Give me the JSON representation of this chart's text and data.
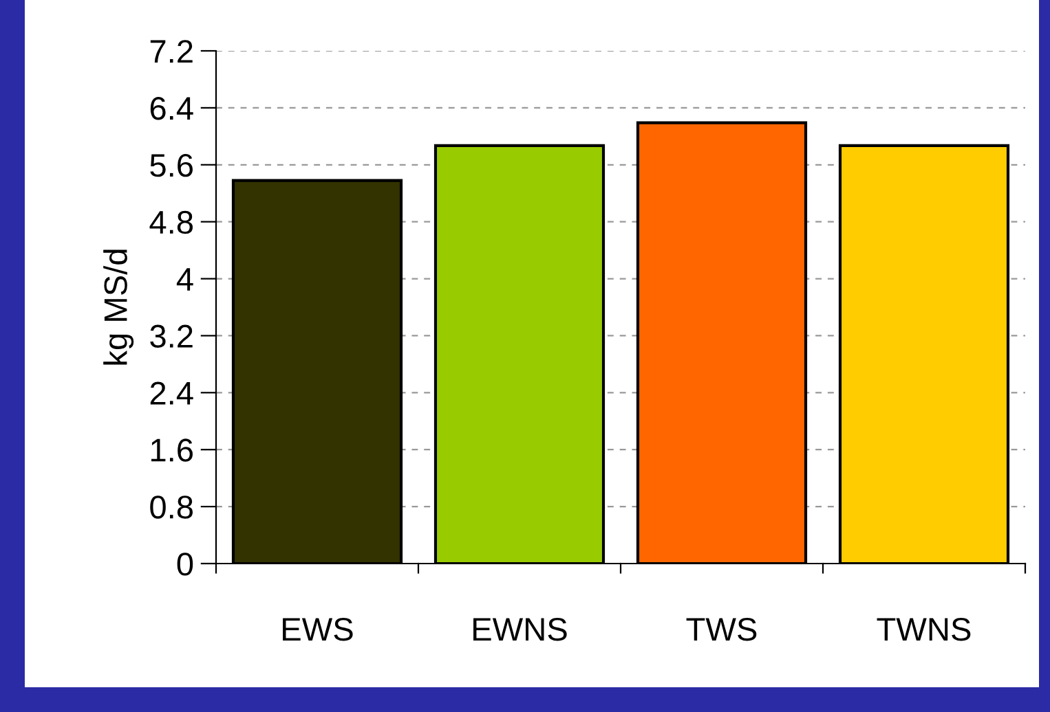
{
  "chart_data": {
    "type": "bar",
    "ylabel": "kg MS/d",
    "categories": [
      "EWS",
      "EWNS",
      "TWS",
      "TWNS"
    ],
    "values": [
      5.38,
      5.87,
      6.19,
      5.87
    ],
    "colors": [
      "#333300",
      "#99cc00",
      "#ff6600",
      "#ffcc00"
    ],
    "ylim": [
      0,
      7.2
    ],
    "yticks": [
      0,
      0.8,
      1.6,
      2.4,
      3.2,
      4,
      4.8,
      5.6,
      6.4,
      7.2
    ],
    "grid": "y"
  }
}
